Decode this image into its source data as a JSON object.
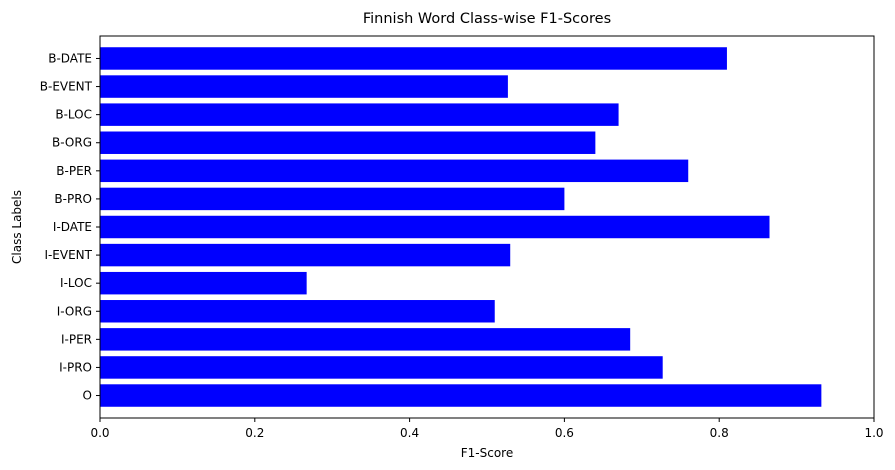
{
  "chart_data": {
    "type": "bar",
    "orientation": "horizontal",
    "title": "Finnish Word Class-wise F1-Scores",
    "xlabel": "F1-Score",
    "ylabel": "Class Labels",
    "xlim": [
      0,
      1.0
    ],
    "x_ticks": [
      "0.0",
      "0.2",
      "0.4",
      "0.6",
      "0.8",
      "1.0"
    ],
    "categories": [
      "B-DATE",
      "B-EVENT",
      "B-LOC",
      "B-ORG",
      "B-PER",
      "B-PRO",
      "I-DATE",
      "I-EVENT",
      "I-LOC",
      "I-ORG",
      "I-PER",
      "I-PRO",
      "O"
    ],
    "values": [
      0.81,
      0.527,
      0.67,
      0.64,
      0.76,
      0.6,
      0.865,
      0.53,
      0.267,
      0.51,
      0.685,
      0.727,
      0.932
    ],
    "bar_color": "#0000ff",
    "grid": false,
    "legend": "none"
  }
}
